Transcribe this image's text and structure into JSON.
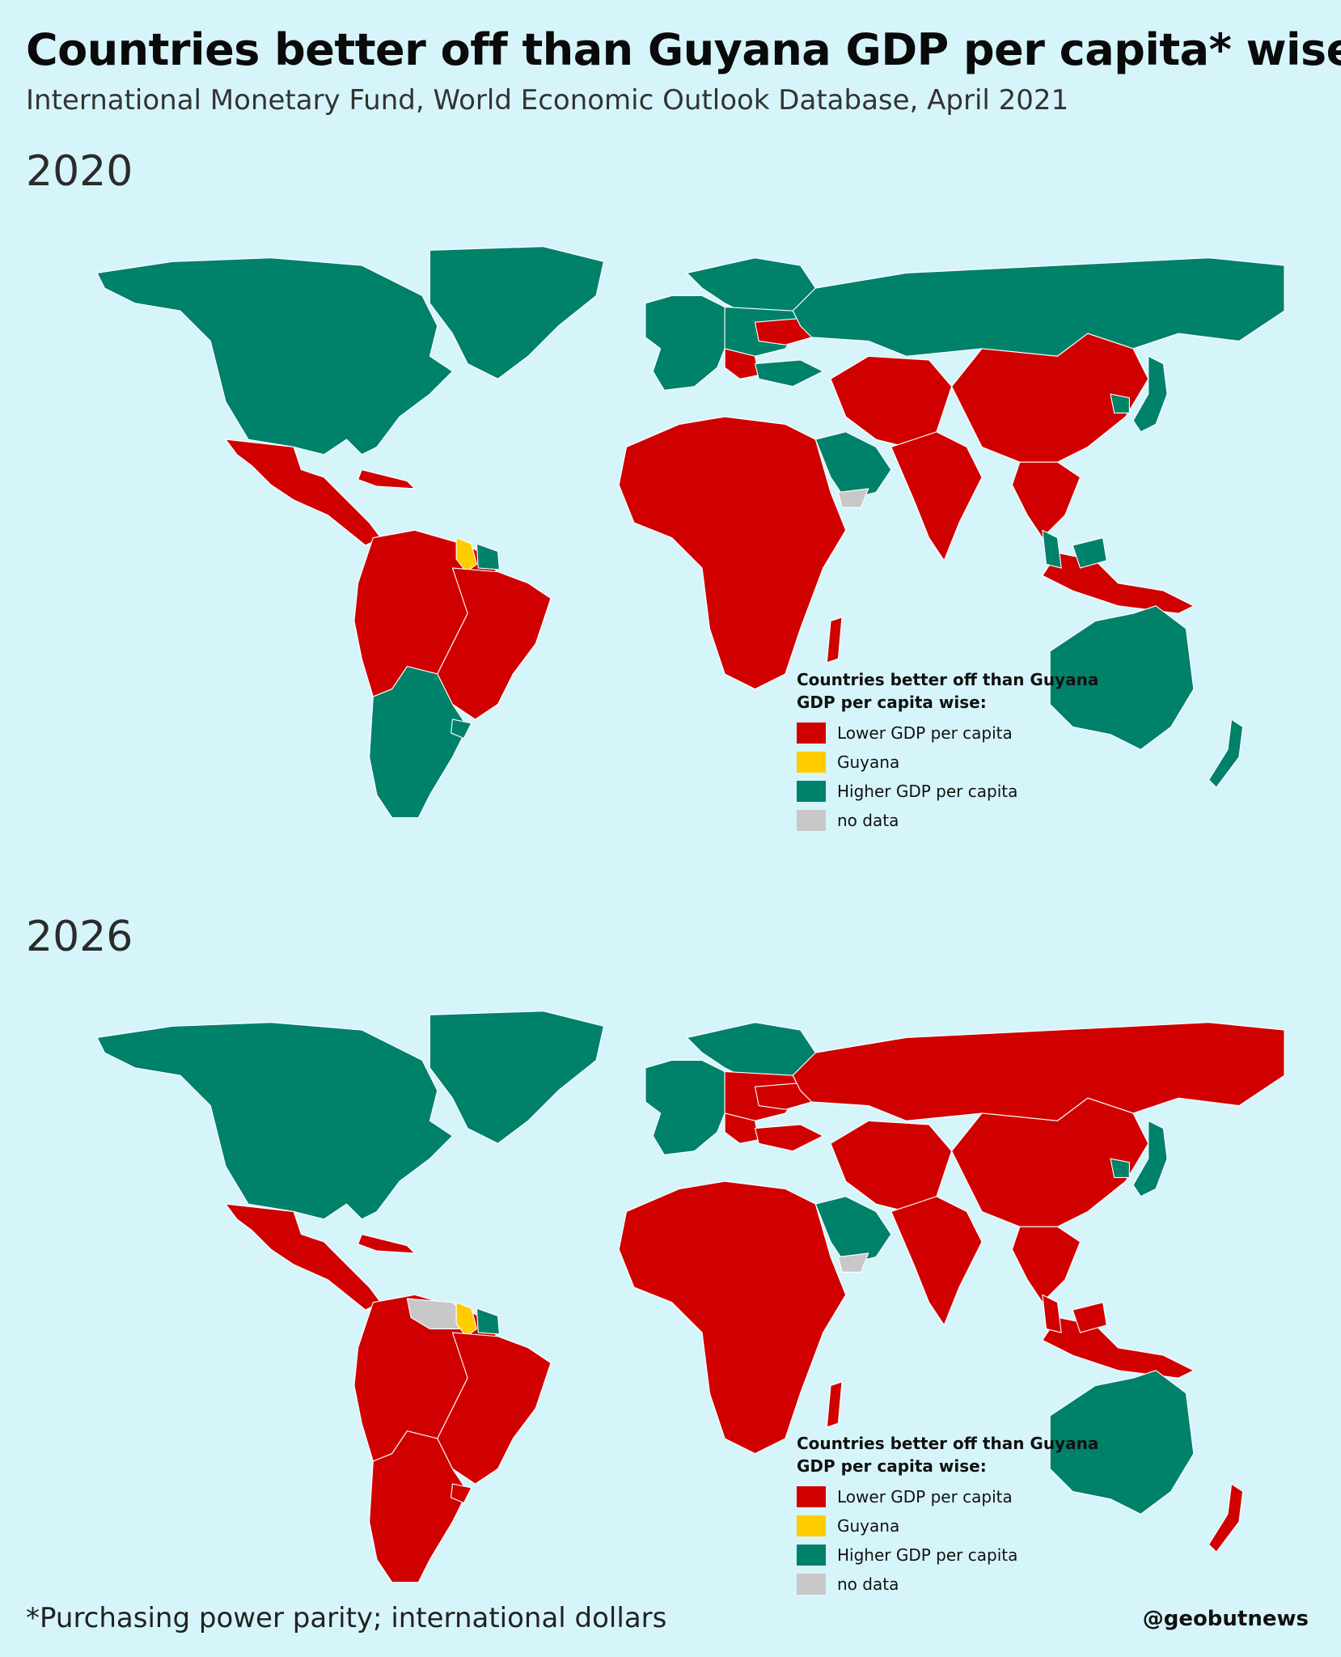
{
  "title": "Countries better off than Guyana GDP per capita* wise",
  "subtitle": "International Monetary Fund, World Economic Outlook Database, April 2021",
  "colors": {
    "lower": "#d10000",
    "guyana": "#ffcc00",
    "higher": "#00816a",
    "nodata": "#c8c8c8",
    "water": "#d6f5fb"
  },
  "maps": [
    {
      "year": "2020",
      "regions": {
        "north_america": "higher",
        "greenland": "higher",
        "mexico_central": "lower",
        "caribbean": "lower",
        "northern_south_america": "lower",
        "guyana": "guyana",
        "suriname_guiana": "higher",
        "brazil": "lower",
        "southern_cone": "higher",
        "uruguay": "higher",
        "western_europe": "higher",
        "scandinavia": "higher",
        "eastern_europe": "higher",
        "ukraine": "lower",
        "balkans": "lower",
        "russia": "higher",
        "turkey": "higher",
        "africa": "lower",
        "arabia": "higher",
        "yemen": "nodata",
        "central_asia": "lower",
        "south_asia": "lower",
        "china": "lower",
        "japan_korea": "higher",
        "southeast_asia": "lower",
        "malaysia": "higher",
        "australia": "higher",
        "new_zealand": "higher",
        "madagascar": "lower"
      },
      "legend": {
        "title": "Countries better off than Guyana GDP per capita wise:",
        "items": [
          {
            "label": "Lower GDP per capita",
            "color": "#d10000"
          },
          {
            "label": "Guyana",
            "color": "#ffcc00"
          },
          {
            "label": "Higher GDP per capita",
            "color": "#00816a"
          },
          {
            "label": "no data",
            "color": "#c8c8c8"
          }
        ]
      }
    },
    {
      "year": "2026",
      "regions": {
        "north_america": "higher",
        "greenland": "higher",
        "mexico_central": "lower",
        "caribbean": "lower",
        "northern_south_america": "lower",
        "venezuela": "nodata",
        "guyana": "guyana",
        "suriname_guiana": "higher",
        "brazil": "lower",
        "southern_cone": "lower",
        "uruguay": "lower",
        "western_europe": "higher",
        "scandinavia": "higher",
        "eastern_europe": "lower",
        "ukraine": "lower",
        "balkans": "lower",
        "russia": "lower",
        "turkey": "lower",
        "africa": "lower",
        "arabia": "higher",
        "yemen": "nodata",
        "central_asia": "lower",
        "south_asia": "lower",
        "china": "lower",
        "japan_korea": "higher",
        "southeast_asia": "lower",
        "malaysia": "lower",
        "australia": "higher",
        "new_zealand": "lower",
        "madagascar": "lower"
      },
      "legend": {
        "title": "Countries better off than Guyana GDP per capita wise:",
        "items": [
          {
            "label": "Lower GDP per capita",
            "color": "#d10000"
          },
          {
            "label": "Guyana",
            "color": "#ffcc00"
          },
          {
            "label": "Higher GDP per capita",
            "color": "#00816a"
          },
          {
            "label": "no data",
            "color": "#c8c8c8"
          }
        ]
      }
    }
  ],
  "footnote": "*Purchasing power parity; international dollars",
  "credit": "@geobutnews"
}
